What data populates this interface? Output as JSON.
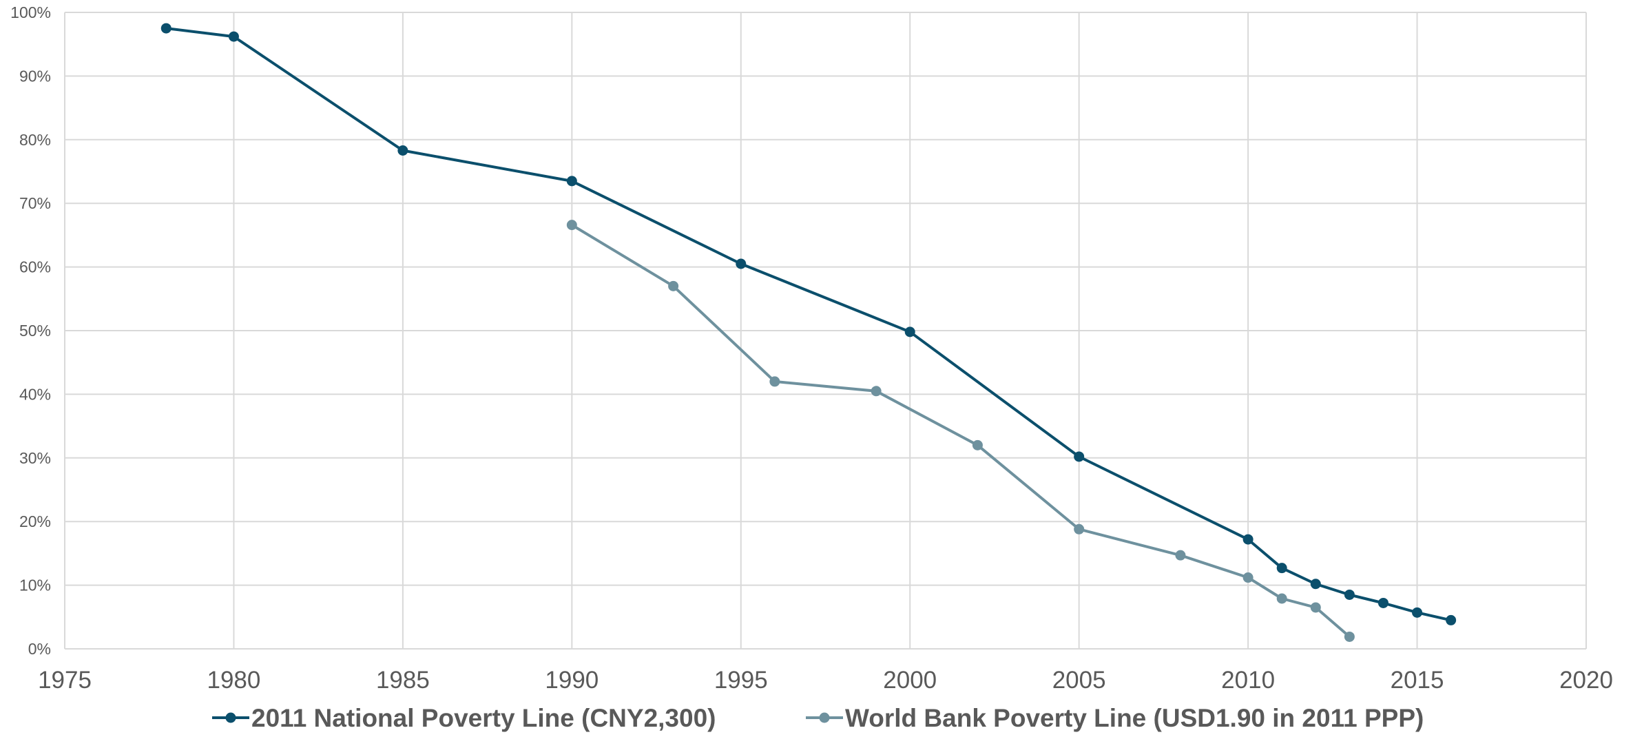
{
  "chart_data": {
    "type": "line",
    "title": "",
    "xlabel": "",
    "ylabel": "",
    "xlim": [
      1975,
      2020
    ],
    "ylim": [
      0,
      100
    ],
    "x_ticks": [
      1975,
      1980,
      1985,
      1990,
      1995,
      2000,
      2005,
      2010,
      2015,
      2020
    ],
    "y_ticks": [
      0,
      10,
      20,
      30,
      40,
      50,
      60,
      70,
      80,
      90,
      100
    ],
    "y_tick_labels": [
      "0%",
      "10%",
      "20%",
      "30%",
      "40%",
      "50%",
      "60%",
      "70%",
      "80%",
      "90%",
      "100%"
    ],
    "grid": true,
    "legend_position": "bottom",
    "series": [
      {
        "name": "2011 National Poverty Line (CNY2,300)",
        "color": "#0b4f6c",
        "x": [
          1978,
          1980,
          1985,
          1990,
          1995,
          2000,
          2005,
          2010,
          2011,
          2012,
          2013,
          2014,
          2015,
          2016
        ],
        "y": [
          97.5,
          96.2,
          78.3,
          73.5,
          60.5,
          49.8,
          30.2,
          17.2,
          12.7,
          10.2,
          8.5,
          7.2,
          5.7,
          4.5
        ]
      },
      {
        "name": "World Bank Poverty Line (USD1.90 in 2011 PPP)",
        "color": "#6e919e",
        "x": [
          1990,
          1993,
          1996,
          1999,
          2002,
          2005,
          2008,
          2010,
          2011,
          2012,
          2013
        ],
        "y": [
          66.6,
          57.0,
          42.0,
          40.5,
          32.0,
          18.8,
          14.7,
          11.2,
          7.9,
          6.5,
          1.9
        ]
      }
    ]
  }
}
